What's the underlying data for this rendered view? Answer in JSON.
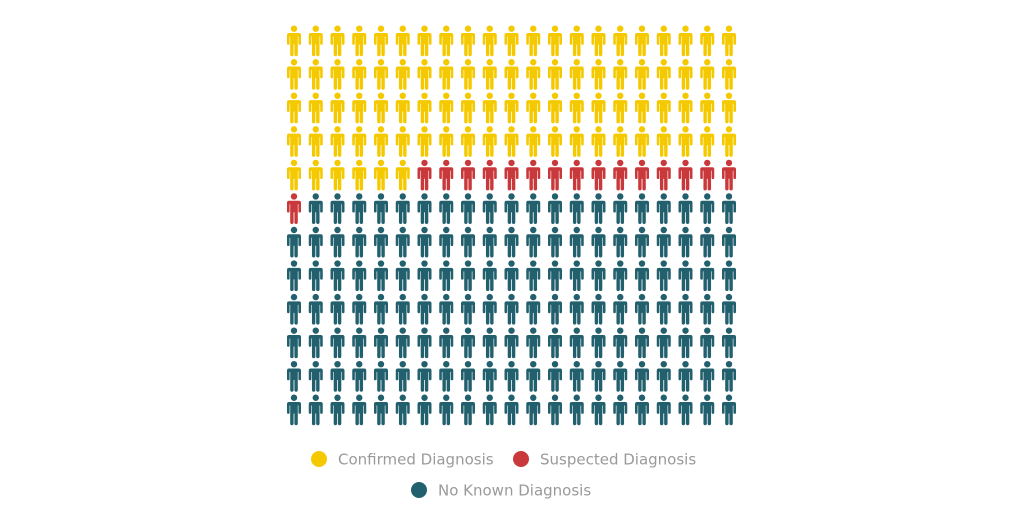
{
  "chart_data": {
    "type": "pictogram",
    "categories": [
      "Confirmed Diagnosis",
      "Suspected Diagnosis",
      "No Known Diagnosis"
    ],
    "values": [
      90,
      16,
      146
    ],
    "colors": [
      "#f5c900",
      "#c9383a",
      "#23606e"
    ]
  }
}
